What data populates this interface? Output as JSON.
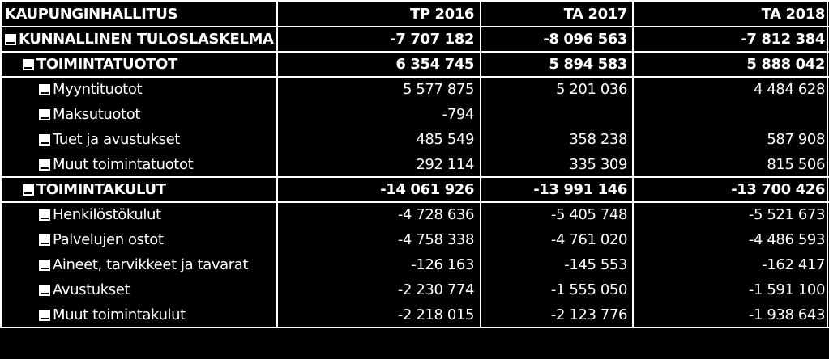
{
  "header": {
    "title": "KAUPUNGINHALLITUS",
    "columns": [
      "TP 2016",
      "TA 2017",
      "TA 2018"
    ]
  },
  "rows": [
    {
      "label": "KUNNALLINEN TULOSLASKELMA",
      "level": 0,
      "bold": true,
      "values": [
        "-7 707 182",
        "-8 096 563",
        "-7 812 384"
      ]
    },
    {
      "label": "TOIMINTATUOTOT",
      "level": 1,
      "bold": true,
      "values": [
        "6 354 745",
        "5 894 583",
        "5 888 042"
      ]
    },
    {
      "label": "Myyntituotot",
      "level": 2,
      "bold": false,
      "values": [
        "5 577 875",
        "5 201 036",
        "4 484 628"
      ]
    },
    {
      "label": "Maksutuotot",
      "level": 2,
      "bold": false,
      "values": [
        "-794",
        "",
        ""
      ]
    },
    {
      "label": "Tuet ja avustukset",
      "level": 2,
      "bold": false,
      "values": [
        "485 549",
        "358 238",
        "587 908"
      ]
    },
    {
      "label": "Muut toimintatuotot",
      "level": 2,
      "bold": false,
      "values": [
        "292 114",
        "335 309",
        "815 506"
      ]
    },
    {
      "label": "TOIMINTAKULUT",
      "level": 1,
      "bold": true,
      "values": [
        "-14 061 926",
        "-13 991 146",
        "-13 700 426"
      ]
    },
    {
      "label": "Henkilöstökulut",
      "level": 2,
      "bold": false,
      "values": [
        "-4 728 636",
        "-5 405 748",
        "-5 521 673"
      ]
    },
    {
      "label": "Palvelujen ostot",
      "level": 2,
      "bold": false,
      "values": [
        "-4 758 338",
        "-4 761 020",
        "-4 486 593"
      ]
    },
    {
      "label": "Aineet, tarvikkeet ja tavarat",
      "level": 2,
      "bold": false,
      "values": [
        "-126 163",
        "-145 553",
        "-162 417"
      ]
    },
    {
      "label": "Avustukset",
      "level": 2,
      "bold": false,
      "values": [
        "-2 230 774",
        "-1 555 050",
        "-1 591 100"
      ]
    },
    {
      "label": "Muut toimintakulut",
      "level": 2,
      "bold": false,
      "values": [
        "-2 218 015",
        "-2 123 776",
        "-1 938 643"
      ]
    }
  ]
}
